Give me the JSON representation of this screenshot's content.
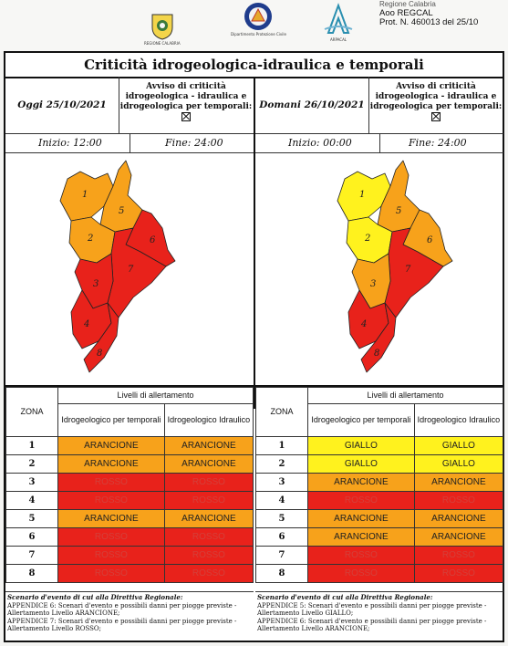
{
  "header": {
    "logos": [
      {
        "name": "regione-calabria-logo",
        "caption": "REGIONE CALABRIA"
      },
      {
        "name": "protezione-civile-logo",
        "caption": "Dipartimento Protezione Civile"
      },
      {
        "name": "arpacal-logo",
        "caption": "ARPACAL"
      }
    ],
    "stamp": {
      "line0": "Regione Calabria",
      "line1": "Aoo REGCAL",
      "line2": "Prot. N. 460013 del 25/10"
    }
  },
  "title": "Criticità idrogeologica-idraulica e temporali",
  "today": {
    "label": "Oggi 25/10/2021",
    "avviso": "Avviso di criticità idrogeologica - idraulica e idrogeologica per temporali:",
    "inizio": "Inizio: 12:00",
    "fine": "Fine: 24:00"
  },
  "tomorrow": {
    "label": "Domani 26/10/2021",
    "avviso": "Avviso di criticità idrogeologica - idraulica e idrogeologica per temporali:",
    "inizio": "Inizio: 00:00",
    "fine": "Fine: 24:00"
  },
  "colors": {
    "rosso": "#e8221b",
    "arancione": "#f7a21b",
    "giallo": "#fff21e"
  },
  "table": {
    "zone_header": "ZONA",
    "livelli_header": "Livelli di allertamento",
    "col1": "Idrogeologico per temporali",
    "col2": "Idrogeologico Idraulico"
  },
  "today_levels": [
    {
      "zona": "1",
      "temporali": "ARANCIONE",
      "idraulico": "ARANCIONE"
    },
    {
      "zona": "2",
      "temporali": "ARANCIONE",
      "idraulico": "ARANCIONE"
    },
    {
      "zona": "3",
      "temporali": "ROSSO",
      "idraulico": "ROSSO"
    },
    {
      "zona": "4",
      "temporali": "ROSSO",
      "idraulico": "ROSSO"
    },
    {
      "zona": "5",
      "temporali": "ARANCIONE",
      "idraulico": "ARANCIONE"
    },
    {
      "zona": "6",
      "temporali": "ROSSO",
      "idraulico": "ROSSO"
    },
    {
      "zona": "7",
      "temporali": "ROSSO",
      "idraulico": "ROSSO"
    },
    {
      "zona": "8",
      "temporali": "ROSSO",
      "idraulico": "ROSSO"
    }
  ],
  "tomorrow_levels": [
    {
      "zona": "1",
      "temporali": "GIALLO",
      "idraulico": "GIALLO"
    },
    {
      "zona": "2",
      "temporali": "GIALLO",
      "idraulico": "GIALLO"
    },
    {
      "zona": "3",
      "temporali": "ARANCIONE",
      "idraulico": "ARANCIONE"
    },
    {
      "zona": "4",
      "temporali": "ROSSO",
      "idraulico": "ROSSO"
    },
    {
      "zona": "5",
      "temporali": "ARANCIONE",
      "idraulico": "ARANCIONE"
    },
    {
      "zona": "6",
      "temporali": "ARANCIONE",
      "idraulico": "ARANCIONE"
    },
    {
      "zona": "7",
      "temporali": "ROSSO",
      "idraulico": "ROSSO"
    },
    {
      "zona": "8",
      "temporali": "ROSSO",
      "idraulico": "ROSSO"
    }
  ],
  "scenario_today": {
    "heading": "Scenario d'evento di cui alla Direttiva Regionale:",
    "lines": [
      "APPENDICE 6: Scenari d'evento e possibili danni per piogge previste - Allertamento Livello ARANCIONE;",
      "APPENDICE 7: Scenari d'evento e possibili danni per piogge previste - Allertamento Livello ROSSO;"
    ]
  },
  "scenario_tomorrow": {
    "heading": "Scenario d'evento di cui alla Direttiva Regionale:",
    "lines": [
      "APPENDICE 5: Scenari d'evento e possibili danni per piogge previste - Allertamento Livello GIALLO;",
      "APPENDICE 6: Scenari d'evento e possibili danni per piogge previste - Allertamento Livello ARANCIONE;"
    ]
  }
}
